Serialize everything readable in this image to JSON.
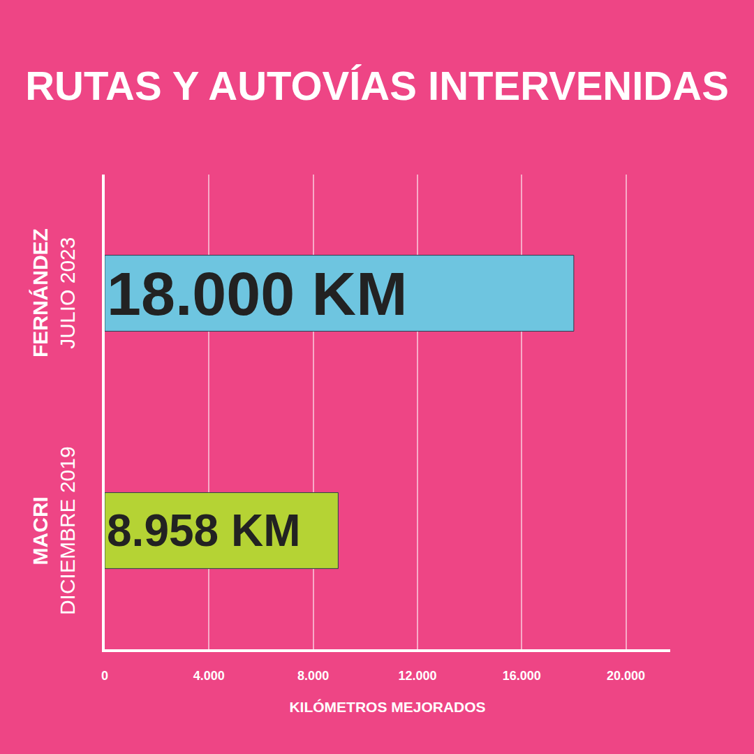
{
  "chart_data": {
    "type": "bar",
    "orientation": "horizontal",
    "title": "RUTAS Y AUTOVÍAS INTERVENIDAS",
    "categories": [
      "FERNÁNDEZ",
      "MACRI"
    ],
    "category_subtitles": [
      "JULIO 2023",
      "DICIEMBRE 2019"
    ],
    "values": [
      18000,
      8958
    ],
    "value_labels": [
      "18.000 KM",
      "8.958 KM"
    ],
    "data_labels": true,
    "colors": [
      "#6ec5e0",
      "#b5d334"
    ],
    "xlabel": "KILÓMETROS MEJORADOS",
    "xlim": [
      0,
      21700
    ],
    "xticks": [
      0,
      {
        "value": 4000,
        "label": "4.000"
      },
      {
        "value": 8000,
        "label": "8.000"
      },
      {
        "value": 12000,
        "label": "12.000"
      },
      {
        "value": 16000,
        "label": "16.000"
      },
      {
        "value": 20000,
        "label": "20.000"
      }
    ],
    "grid": true,
    "tick_labels": "x"
  }
}
